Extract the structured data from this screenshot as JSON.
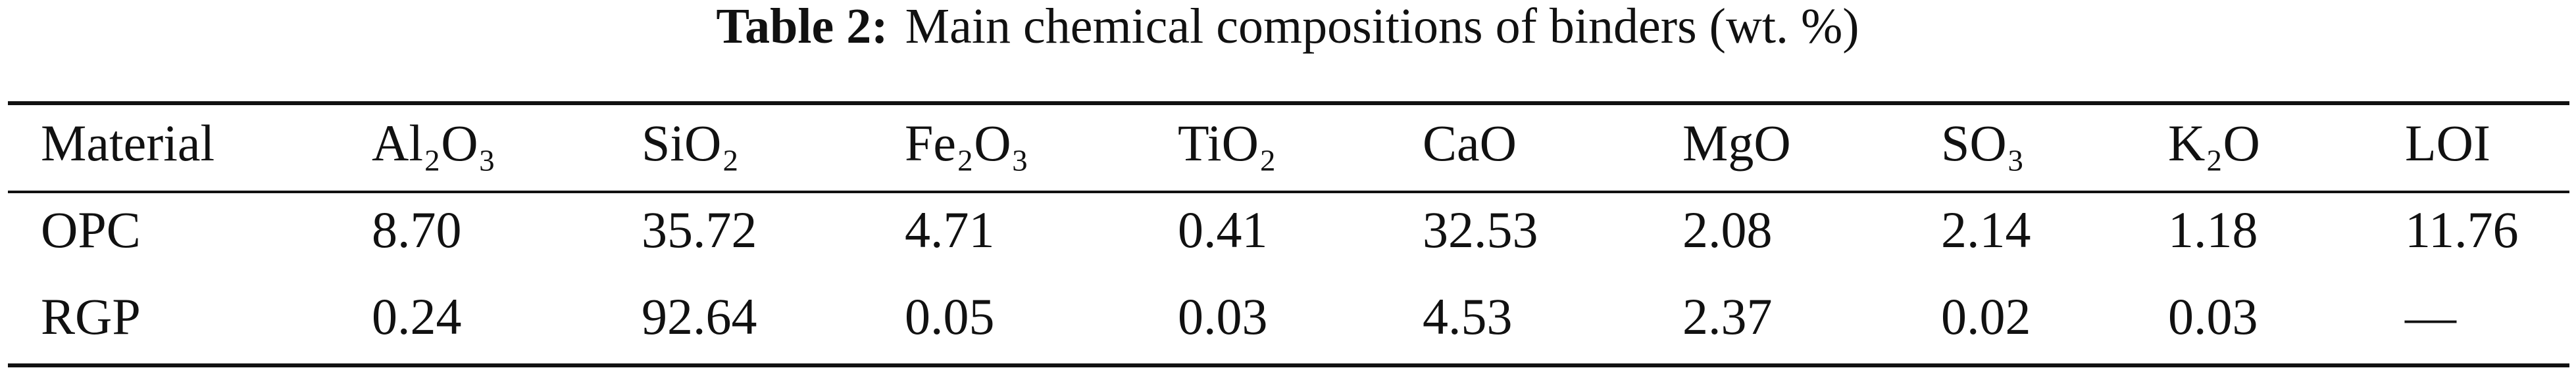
{
  "table": {
    "label": "Table 2:",
    "caption": "Main chemical compositions of binders (wt. %)",
    "header": [
      "Material",
      "Al₂O₃",
      "SiO₂",
      "Fe₂O₃",
      "TiO₂",
      "CaO",
      "MgO",
      "SO₃",
      "K₂O",
      "LOI"
    ],
    "rows": [
      [
        "OPC",
        "8.70",
        "35.72",
        "4.71",
        "0.41",
        "32.53",
        "2.08",
        "2.14",
        "1.18",
        "11.76"
      ],
      [
        "RGP",
        "0.24",
        "92.64",
        "0.05",
        "0.03",
        "4.53",
        "2.37",
        "0.02",
        "0.03",
        "—"
      ]
    ]
  }
}
